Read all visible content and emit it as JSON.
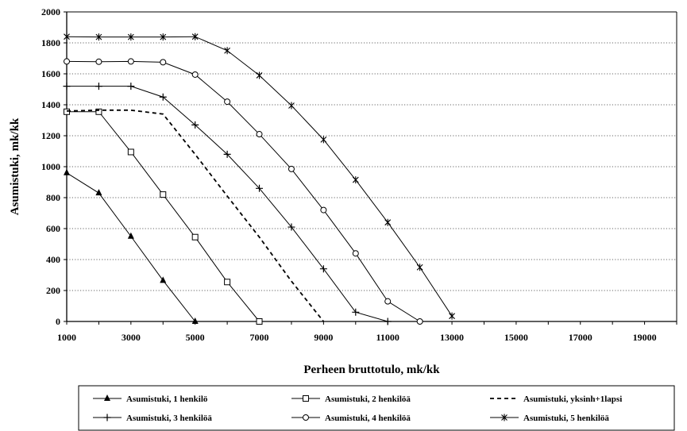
{
  "chart_data": {
    "type": "line",
    "title": "",
    "xlabel": "Perheen bruttotulo, mk/kk",
    "ylabel": "Asumistuki, mk/kk",
    "xlim": [
      1000,
      20000
    ],
    "ylim": [
      0,
      2000
    ],
    "x_ticks": [
      "1000",
      "3000",
      "5000",
      "7000",
      "9000",
      "11000",
      "13000",
      "15000",
      "17000",
      "19000"
    ],
    "y_ticks": [
      "0",
      "200",
      "400",
      "600",
      "800",
      "1000",
      "1200",
      "1400",
      "1600",
      "1800",
      "2000"
    ],
    "grid": "horizontal dotted",
    "legend_position": "bottom",
    "series": [
      {
        "name": "Asumistuki, 1 henkilö",
        "marker": "filled-triangle",
        "line": "solid",
        "points": [
          [
            1000,
            960
          ],
          [
            2000,
            830
          ],
          [
            3000,
            550
          ],
          [
            4000,
            265
          ],
          [
            5000,
            0
          ]
        ]
      },
      {
        "name": "Asumistuki, 2 henkilöä",
        "marker": "hollow-square",
        "line": "solid",
        "points": [
          [
            1000,
            1355
          ],
          [
            2000,
            1355
          ],
          [
            3000,
            1095
          ],
          [
            4000,
            820
          ],
          [
            5000,
            545
          ],
          [
            6000,
            255
          ],
          [
            7000,
            0
          ]
        ]
      },
      {
        "name": "Asumistuki, yksinh+1lapsi",
        "marker": "none",
        "line": "dashed",
        "points": [
          [
            1000,
            1360
          ],
          [
            2000,
            1365
          ],
          [
            3000,
            1365
          ],
          [
            4000,
            1340
          ],
          [
            5000,
            1080
          ],
          [
            6000,
            810
          ],
          [
            7000,
            545
          ],
          [
            8000,
            260
          ],
          [
            9000,
            0
          ]
        ]
      },
      {
        "name": "Asumistuki, 3 henkilöä",
        "marker": "plus",
        "line": "solid",
        "points": [
          [
            1000,
            1520
          ],
          [
            2000,
            1520
          ],
          [
            3000,
            1520
          ],
          [
            4000,
            1450
          ],
          [
            5000,
            1270
          ],
          [
            6000,
            1080
          ],
          [
            7000,
            860
          ],
          [
            8000,
            610
          ],
          [
            9000,
            340
          ],
          [
            10000,
            60
          ],
          [
            11000,
            0
          ]
        ]
      },
      {
        "name": "Asumistuki, 4 henkilöä",
        "marker": "hollow-circle",
        "line": "solid",
        "points": [
          [
            1000,
            1680
          ],
          [
            2000,
            1678
          ],
          [
            3000,
            1680
          ],
          [
            4000,
            1675
          ],
          [
            5000,
            1595
          ],
          [
            6000,
            1420
          ],
          [
            7000,
            1210
          ],
          [
            8000,
            985
          ],
          [
            9000,
            720
          ],
          [
            10000,
            440
          ],
          [
            11000,
            130
          ],
          [
            12000,
            0
          ]
        ]
      },
      {
        "name": "Asumistuki, 5 henkilöä",
        "marker": "star",
        "line": "solid",
        "points": [
          [
            1000,
            1840
          ],
          [
            2000,
            1838
          ],
          [
            3000,
            1838
          ],
          [
            4000,
            1838
          ],
          [
            5000,
            1840
          ],
          [
            6000,
            1750
          ],
          [
            7000,
            1590
          ],
          [
            8000,
            1395
          ],
          [
            9000,
            1175
          ],
          [
            10000,
            915
          ],
          [
            11000,
            640
          ],
          [
            12000,
            350
          ],
          [
            13000,
            35
          ]
        ]
      }
    ]
  }
}
